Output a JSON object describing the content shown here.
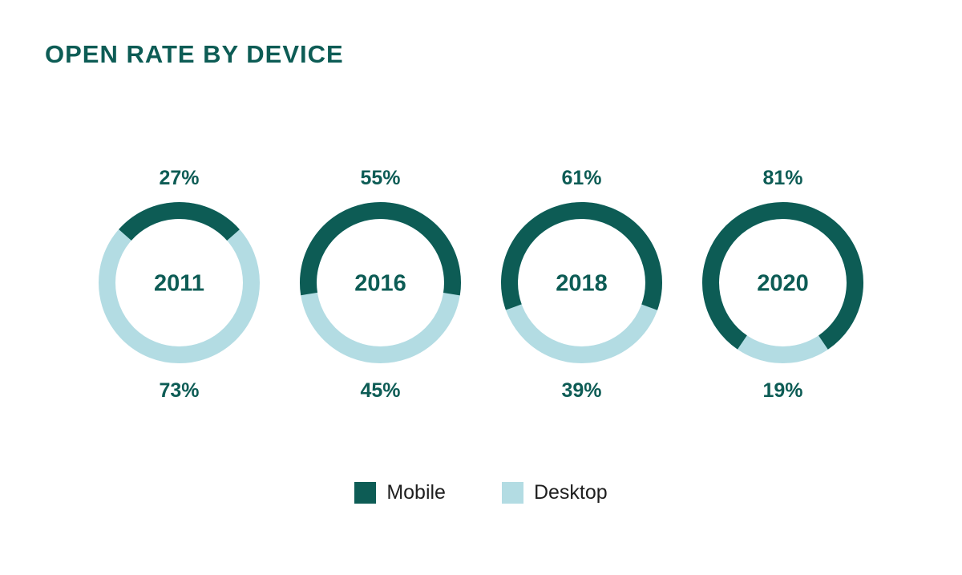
{
  "title": "OPEN RATE BY DEVICE",
  "colors": {
    "mobile": "#0d5c55",
    "desktop": "#b3dce3",
    "title": "#0d5c55",
    "percent_label": "#0d5c55",
    "legend_text": "#1f1f1f",
    "background": "#ffffff"
  },
  "legend": {
    "items": [
      {
        "label": "Mobile",
        "color_key": "mobile"
      },
      {
        "label": "Desktop",
        "color_key": "desktop"
      }
    ],
    "position": "bottom"
  },
  "chart_data": {
    "type": "pie",
    "subtype": "donut-small-multiples",
    "title": "OPEN RATE BY DEVICE",
    "series_labels": [
      "Mobile",
      "Desktop"
    ],
    "legend_position": "bottom",
    "charts": [
      {
        "year": "2011",
        "mobile_pct": 27,
        "desktop_pct": 73,
        "top_label": "27%",
        "bottom_label": "73%"
      },
      {
        "year": "2016",
        "mobile_pct": 55,
        "desktop_pct": 45,
        "top_label": "55%",
        "bottom_label": "45%"
      },
      {
        "year": "2018",
        "mobile_pct": 61,
        "desktop_pct": 39,
        "top_label": "61%",
        "bottom_label": "39%"
      },
      {
        "year": "2020",
        "mobile_pct": 81,
        "desktop_pct": 19,
        "top_label": "81%",
        "bottom_label": "19%"
      }
    ]
  }
}
